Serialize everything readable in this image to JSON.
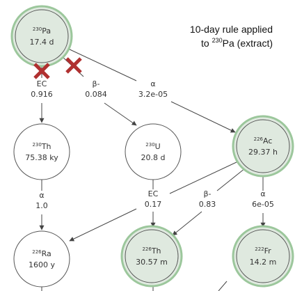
{
  "annotation": {
    "line1": "10-day rule applied",
    "line2_pre": "to ",
    "line2_sup": "230",
    "line2_post": "Pa (extract)"
  },
  "nodes": [
    {
      "mass": "230",
      "symbol": "Pa",
      "value": "17.4 d"
    },
    {
      "mass": "230",
      "symbol": "Th",
      "value": "75.38 ky"
    },
    {
      "mass": "230",
      "symbol": "U",
      "value": "20.8 d"
    },
    {
      "mass": "226",
      "symbol": "Ac",
      "value": "29.37 h"
    },
    {
      "mass": "226",
      "symbol": "Ra",
      "value": "1600 y"
    },
    {
      "mass": "226",
      "symbol": "Th",
      "value": "30.57 m"
    },
    {
      "mass": "222",
      "symbol": "Fr",
      "value": "14.2 m"
    }
  ],
  "edges": [
    {
      "mode": "EC",
      "ratio": "0.916"
    },
    {
      "mode": "β-",
      "ratio": "0.084"
    },
    {
      "mode": "α",
      "ratio": "3.2e-05"
    },
    {
      "mode": "α",
      "ratio": "1.0"
    },
    {
      "mode": "EC",
      "ratio": "0.17"
    },
    {
      "mode": "β-",
      "ratio": "0.83"
    },
    {
      "mode": "α",
      "ratio": "6e-05"
    }
  ]
}
